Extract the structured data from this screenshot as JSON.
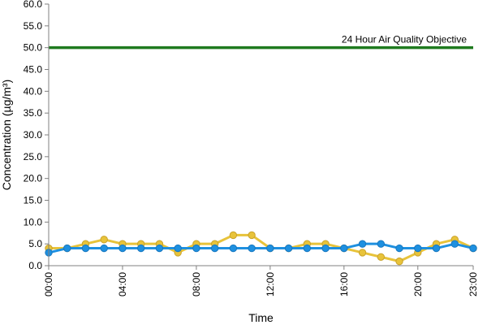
{
  "chart_data": {
    "type": "line",
    "title": "",
    "xlabel": "Time",
    "ylabel": "Concentration (µg/m³)",
    "ylim": [
      0,
      60
    ],
    "y_ticks": [
      "0.0",
      "5.0",
      "10.0",
      "15.0",
      "20.0",
      "25.0",
      "30.0",
      "35.0",
      "40.0",
      "45.0",
      "50.0",
      "55.0",
      "60.0"
    ],
    "x": [
      0,
      1,
      2,
      3,
      4,
      5,
      6,
      7,
      8,
      9,
      10,
      11,
      12,
      13,
      14,
      15,
      16,
      17,
      18,
      19,
      20,
      21,
      22,
      23
    ],
    "x_ticks": [
      {
        "hour": 0,
        "label": "00:00"
      },
      {
        "hour": 4,
        "label": "04:00"
      },
      {
        "hour": 8,
        "label": "08:00"
      },
      {
        "hour": 12,
        "label": "12:00"
      },
      {
        "hour": 16,
        "label": "16:00"
      },
      {
        "hour": 20,
        "label": "20:00"
      },
      {
        "hour": 23,
        "label": "23:00"
      }
    ],
    "grid": false,
    "series": [
      {
        "color": "#E8C33A",
        "values": [
          4,
          4,
          5,
          6,
          5,
          5,
          5,
          3,
          5,
          5,
          7,
          7,
          4,
          4,
          5,
          5,
          4,
          3,
          2,
          1,
          3,
          5,
          6,
          4
        ]
      },
      {
        "color": "#1E90E0",
        "values": [
          3,
          4,
          4,
          4,
          4,
          4,
          4,
          4,
          4,
          4,
          4,
          4,
          4,
          4,
          4,
          4,
          4,
          5,
          5,
          4,
          4,
          4,
          5,
          4
        ]
      }
    ],
    "reference_line": {
      "value": 50,
      "label": "24 Hour Air Quality Objective",
      "color": "#1E7A1E"
    }
  }
}
